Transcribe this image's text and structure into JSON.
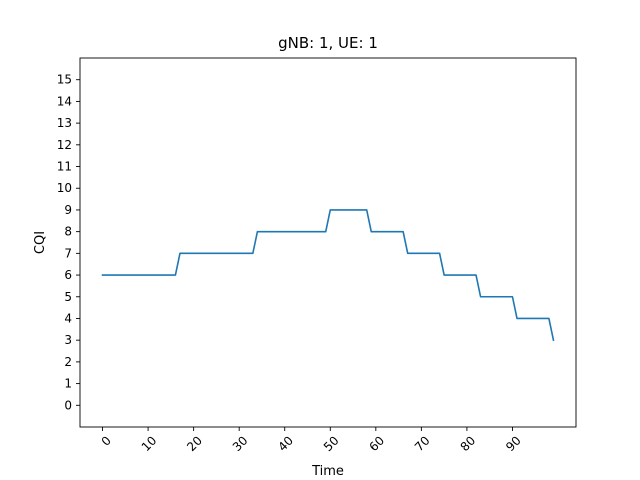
{
  "chart_data": {
    "type": "line",
    "title": "gNB: 1, UE: 1",
    "xlabel": "Time",
    "ylabel": "CQI",
    "xlim": [
      -4.95,
      103.95
    ],
    "ylim": [
      -1,
      16
    ],
    "xticks": [
      0,
      10,
      20,
      30,
      40,
      50,
      60,
      70,
      80,
      90
    ],
    "yticks": [
      0,
      1,
      2,
      3,
      4,
      5,
      6,
      7,
      8,
      9,
      10,
      11,
      12,
      13,
      14,
      15
    ],
    "xtick_rotation": 45,
    "grid": false,
    "legend": "none",
    "series": [
      {
        "color": "#1f77b4",
        "points": [
          [
            0,
            6
          ],
          [
            16,
            6
          ],
          [
            17,
            7
          ],
          [
            33,
            7
          ],
          [
            34,
            8
          ],
          [
            49,
            8
          ],
          [
            50,
            9
          ],
          [
            58,
            9
          ],
          [
            59,
            8
          ],
          [
            66,
            8
          ],
          [
            67,
            7
          ],
          [
            74,
            7
          ],
          [
            75,
            6
          ],
          [
            82,
            6
          ],
          [
            83,
            5
          ],
          [
            90,
            5
          ],
          [
            91,
            4
          ],
          [
            98,
            4
          ],
          [
            99,
            3
          ]
        ]
      }
    ]
  }
}
